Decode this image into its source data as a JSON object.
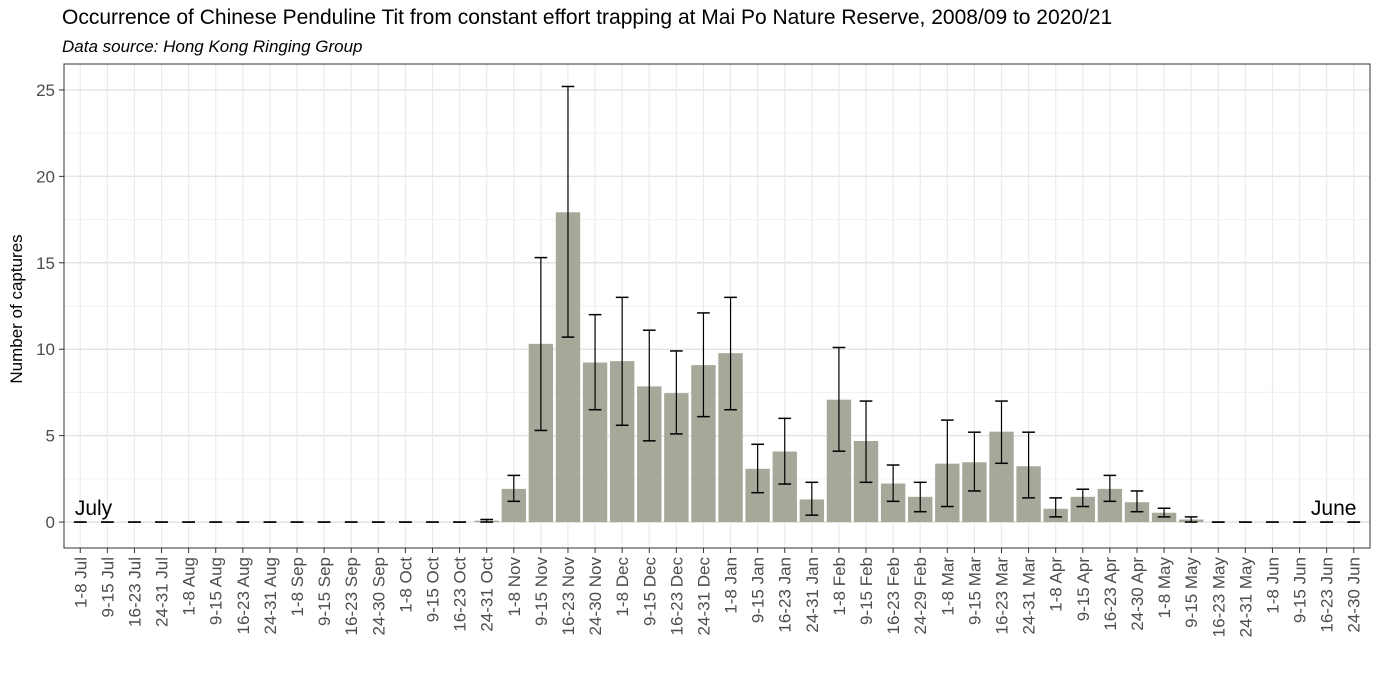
{
  "chart_data": {
    "type": "bar",
    "title": "Occurrence of Chinese Penduline Tit from constant effort trapping at Mai Po Nature Reserve, 2008/09 to 2020/21",
    "subtitle": "Data source: Hong Kong Ringing Group",
    "xlabel": "",
    "ylabel": "Number of captures",
    "ylim": [
      -1.5,
      26.5
    ],
    "yticks": [
      0,
      5,
      10,
      15,
      20,
      25
    ],
    "grid": true,
    "bar_color": "#a7a899",
    "annotations": [
      {
        "text": "July",
        "category": "1-8 Jul"
      },
      {
        "text": "June",
        "category": "30 Jun"
      }
    ],
    "categories": [
      "1-8 Jul",
      "9-15 Jul",
      "16-23 Jul",
      "24-31 Jul",
      "1-8 Aug",
      "9-15 Aug",
      "16-23 Aug",
      "24-31 Aug",
      "1-8 Sep",
      "9-15 Sep",
      "16-23 Sep",
      "24-30 Sep",
      "1-8 Oct",
      "9-15 Oct",
      "16-23 Oct",
      "24-31 Oct",
      "1-8 Nov",
      "9-15 Nov",
      "16-23 Nov",
      "24-30 Nov",
      "1-8 Dec",
      "9-15 Dec",
      "16-23 Dec",
      "24-31 Dec",
      "1-8 Jan",
      "9-15 Jan",
      "16-23 Jan",
      "24-31 Jan",
      "1-8 Feb",
      "9-15 Feb",
      "16-23 Feb",
      "24-29 Feb",
      "1-8 Mar",
      "9-15 Mar",
      "16-23 Mar",
      "24-31 Mar",
      "1-8 Apr",
      "9-15 Apr",
      "16-23 Apr",
      "24-30 Apr",
      "1-8 May",
      "9-15 May",
      "16-23 May",
      "24-31 May",
      "1-8 Jun",
      "9-15 Jun",
      "16-23 Jun",
      "24-30 Jun"
    ],
    "values": [
      0,
      0,
      0,
      0,
      0,
      0,
      0,
      0,
      0,
      0,
      0,
      0,
      0,
      0,
      0,
      0.08,
      1.92,
      10.31,
      17.92,
      9.23,
      9.31,
      7.85,
      7.46,
      9.08,
      9.77,
      3.08,
      4.08,
      1.31,
      7.08,
      4.69,
      2.23,
      1.46,
      3.38,
      3.46,
      5.23,
      3.23,
      0.77,
      1.46,
      1.92,
      1.15,
      0.54,
      0.15,
      0,
      0,
      0,
      0,
      0,
      0
    ],
    "error_low": [
      0,
      0,
      0,
      0,
      0,
      0,
      0,
      0,
      0,
      0,
      0,
      0,
      0,
      0,
      0,
      0.0,
      1.2,
      5.3,
      10.7,
      6.5,
      5.6,
      4.7,
      5.1,
      6.1,
      6.5,
      1.7,
      2.2,
      0.4,
      4.1,
      2.3,
      1.2,
      0.6,
      0.9,
      1.8,
      3.4,
      1.4,
      0.3,
      0.9,
      1.2,
      0.6,
      0.3,
      0.0,
      0,
      0,
      0,
      0,
      0,
      0
    ],
    "error_high": [
      0,
      0,
      0,
      0,
      0,
      0,
      0,
      0,
      0,
      0,
      0,
      0,
      0,
      0,
      0,
      0.15,
      2.7,
      15.3,
      25.2,
      12.0,
      13.0,
      11.1,
      9.9,
      12.1,
      13.0,
      4.5,
      6.0,
      2.3,
      10.1,
      7.0,
      3.3,
      2.3,
      5.9,
      5.2,
      7.0,
      5.2,
      1.4,
      1.9,
      2.7,
      1.8,
      0.8,
      0.3,
      0,
      0,
      0,
      0,
      0,
      0
    ]
  }
}
